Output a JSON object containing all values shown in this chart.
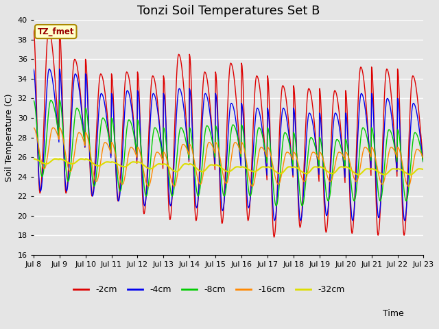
{
  "title": "Tonzi Soil Temperatures Set B",
  "xlabel": "Time",
  "ylabel": "Soil Temperature (C)",
  "ylim": [
    16,
    40
  ],
  "annotation": "TZ_fmet",
  "series_colors": {
    "-2cm": "#dd0000",
    "-4cm": "#0000ee",
    "-8cm": "#00cc00",
    "-16cm": "#ff8800",
    "-32cm": "#dddd00"
  },
  "tick_labels": [
    "Jul 8",
    "Jul 9",
    "Jul 10",
    "Jul 11",
    "Jul 12",
    "Jul 13",
    "Jul 14",
    "Jul 15",
    "Jul 16",
    "Jul 17",
    "Jul 18",
    "Jul 19",
    "Jul 20",
    "Jul 21",
    "Jul 22",
    "Jul 23"
  ],
  "background_color": "#e5e5e5",
  "grid_color": "#ffffff",
  "title_fontsize": 13,
  "axis_label_fontsize": 9,
  "tick_fontsize": 8
}
